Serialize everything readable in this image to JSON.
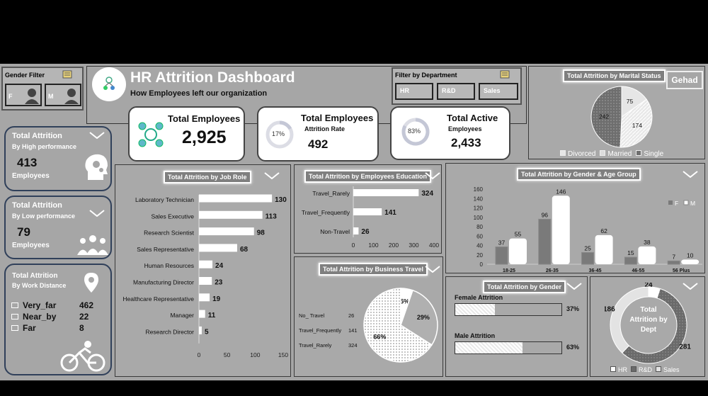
{
  "header": {
    "title": "HR Attrition Dashboard",
    "subtitle": "How Employees left our organization",
    "author_badge": "Gehad"
  },
  "gender_filter": {
    "title": "Gender Filter",
    "options": [
      "F",
      "M"
    ]
  },
  "dept_filter": {
    "title": "Filter by Department",
    "options": [
      "HR",
      "R&D",
      "Sales"
    ]
  },
  "kpis": {
    "total_employees": {
      "label": "Total Employees",
      "value": "2,925"
    },
    "attrition_rate": {
      "label": "Total Employees",
      "sublabel": "Attrition Rate",
      "value": "492",
      "pct": "17%",
      "pct_value": 17
    },
    "total_active": {
      "label": "Total Active",
      "sublabel": "Employees",
      "value": "2,433",
      "pct": "83%",
      "pct_value": 83
    }
  },
  "side": {
    "high": {
      "title": "Total Attrition",
      "subtitle": "By High performance",
      "value": "413",
      "unit": "Employees"
    },
    "low": {
      "title": "Total Attrition",
      "subtitle": "By Low performance",
      "value": "79",
      "unit": "Employees"
    },
    "distance": {
      "title": "Total Attrition",
      "subtitle": "By Work Distance",
      "rows": [
        {
          "label": "Very_far",
          "value": "462"
        },
        {
          "label": "Near_by",
          "value": "22"
        },
        {
          "label": "Far",
          "value": "8"
        }
      ]
    }
  },
  "chart_data": [
    {
      "id": "job_role",
      "type": "bar",
      "orientation": "horizontal",
      "title": "Total Attrition by Job Role",
      "categories": [
        "Laboratory Technician",
        "Sales Executive",
        "Research Scientist",
        "Sales Representative",
        "Human Resources",
        "Manufacturing Director",
        "Healthcare Representative",
        "Manager",
        "Research Director"
      ],
      "values": [
        130,
        113,
        98,
        68,
        24,
        23,
        19,
        11,
        5
      ],
      "xlim": [
        0,
        150
      ],
      "xticks": [
        "0",
        "50",
        "100",
        "150"
      ]
    },
    {
      "id": "education",
      "type": "bar",
      "orientation": "horizontal",
      "title": "Total Attrition by Employees Education",
      "categories": [
        "Travel_Rarely",
        "Travel_Frequently",
        "Non-Travel"
      ],
      "values": [
        324,
        141,
        26
      ],
      "xlim": [
        0,
        400
      ],
      "xticks": [
        "0",
        "100",
        "200",
        "300",
        "400"
      ]
    },
    {
      "id": "gender_age",
      "type": "bar",
      "title": "Total Attrition by Gender & Age Group",
      "categories": [
        "18-25",
        "26-35",
        "36-45",
        "46-55",
        "56 Plus"
      ],
      "series": [
        {
          "name": "F",
          "values": [
            37,
            96,
            25,
            15,
            7
          ]
        },
        {
          "name": "M",
          "values": [
            55,
            146,
            62,
            38,
            10
          ]
        }
      ],
      "ylim": [
        0,
        160
      ],
      "yticks": [
        "0",
        "20",
        "40",
        "60",
        "80",
        "100",
        "120",
        "140",
        "160"
      ],
      "legend": "top-right"
    },
    {
      "id": "business_travel",
      "type": "pie",
      "title": "Total Attrition by Business Travel",
      "categories": [
        "No_ Travel",
        "Travel_Frequently",
        "Travel_Rarely"
      ],
      "values": [
        26,
        141,
        324
      ],
      "labels": [
        "5%",
        "29%",
        "66%"
      ]
    },
    {
      "id": "marital",
      "type": "pie",
      "title": "Total Attrition by Marital Status",
      "categories": [
        "Divorced",
        "Married",
        "Single"
      ],
      "values": [
        75,
        174,
        242
      ],
      "labels": [
        "75",
        "174",
        "242"
      ],
      "legend": "bottom"
    },
    {
      "id": "gender",
      "type": "bar",
      "orientation": "horizontal",
      "title": "Total Attrition by Gender",
      "categories": [
        "Female Attrition",
        "Male Attrition"
      ],
      "values": [
        37,
        63
      ],
      "labels": [
        "37%",
        "63%"
      ],
      "xlim": [
        0,
        100
      ]
    },
    {
      "id": "dept",
      "type": "pie",
      "title": "Total Attrition by Dept",
      "categories": [
        "HR",
        "R&D",
        "Sales"
      ],
      "values": [
        24,
        281,
        186
      ],
      "labels": [
        "24",
        "281",
        "186"
      ],
      "legend": "bottom"
    }
  ],
  "colors": {
    "panel": "#a9a9a9",
    "bar": "#ffffff",
    "dark_bar": "#7a7a7a",
    "track": "#dcdde5"
  },
  "icons": [
    "photo-placeholder-icon",
    "head-gears-icon",
    "people-group-icon",
    "location-pin-icon",
    "cyclist-icon",
    "female-avatar-icon",
    "male-avatar-icon",
    "team-network-icon",
    "slicer-multiselect-icon",
    "chevron-down-icon"
  ]
}
